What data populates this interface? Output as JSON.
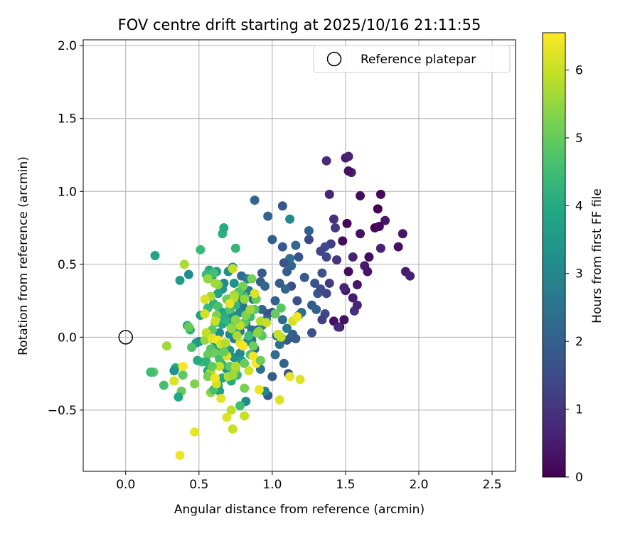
{
  "chart_data": {
    "type": "scatter",
    "title": "FOV centre drift starting at 2025/10/16 21:11:55",
    "xlabel": "Angular distance from reference (arcmin)",
    "ylabel": "Rotation from reference (arcmin)",
    "xlim": [
      -0.29,
      2.66
    ],
    "ylim": [
      -0.92,
      2.04
    ],
    "xticks": [
      0.0,
      0.5,
      1.0,
      1.5,
      2.0,
      2.5
    ],
    "xtick_labels": [
      "0.0",
      "0.5",
      "1.0",
      "1.5",
      "2.0",
      "2.5"
    ],
    "yticks": [
      -0.5,
      0.0,
      0.5,
      1.0,
      1.5,
      2.0
    ],
    "ytick_labels": [
      "−0.5",
      "0.0",
      "0.5",
      "1.0",
      "1.5",
      "2.0"
    ],
    "grid": true,
    "legend": {
      "position": "top-right",
      "entries": [
        "Reference platepar"
      ]
    },
    "reference_point": {
      "x": 0.0,
      "y": 0.0,
      "label": "Reference platepar"
    },
    "colorbar": {
      "label": "Hours from first FF file",
      "colormap": "viridis",
      "range": [
        0,
        6.55
      ],
      "ticks": [
        0,
        1,
        2,
        3,
        4,
        5,
        6
      ],
      "tick_labels": [
        "0",
        "1",
        "2",
        "3",
        "4",
        "5",
        "6"
      ]
    },
    "points_xyc": [
      [
        1.46,
        0.07,
        0.1
      ],
      [
        1.49,
        0.12,
        0.3
      ],
      [
        1.52,
        0.45,
        0.2
      ],
      [
        1.55,
        0.55,
        0.6
      ],
      [
        1.58,
        0.36,
        0.4
      ],
      [
        1.6,
        0.71,
        0.3
      ],
      [
        1.48,
        0.66,
        0.2
      ],
      [
        1.51,
        0.78,
        0.1
      ],
      [
        1.63,
        0.49,
        0.5
      ],
      [
        1.66,
        0.55,
        0.2
      ],
      [
        1.7,
        0.75,
        0.1
      ],
      [
        1.72,
        0.88,
        0.0
      ],
      [
        1.74,
        0.61,
        0.6
      ],
      [
        1.77,
        0.8,
        0.4
      ],
      [
        1.74,
        0.98,
        0.1
      ],
      [
        1.6,
        0.97,
        0.2
      ],
      [
        1.54,
        1.13,
        0.6
      ],
      [
        1.5,
        1.23,
        0.5
      ],
      [
        1.52,
        1.24,
        0.6
      ],
      [
        1.52,
        1.14,
        0.3
      ],
      [
        1.37,
        1.21,
        0.8
      ],
      [
        1.39,
        0.98,
        0.7
      ],
      [
        1.86,
        0.62,
        0.3
      ],
      [
        1.89,
        0.71,
        0.4
      ],
      [
        1.91,
        0.45,
        0.5
      ],
      [
        1.94,
        0.42,
        0.6
      ],
      [
        1.73,
        0.76,
        0.2
      ],
      [
        1.65,
        0.45,
        0.4
      ],
      [
        1.56,
        0.18,
        0.9
      ],
      [
        1.58,
        0.22,
        0.7
      ],
      [
        1.55,
        0.27,
        0.5
      ],
      [
        1.5,
        0.32,
        0.4
      ],
      [
        1.42,
        0.11,
        0.3
      ],
      [
        1.45,
        0.07,
        0.8
      ],
      [
        1.49,
        0.34,
        0.7
      ],
      [
        1.42,
        0.81,
        0.9
      ],
      [
        1.43,
        0.75,
        1.1
      ],
      [
        1.44,
        0.53,
        1.0
      ],
      [
        1.4,
        0.64,
        1.2
      ],
      [
        1.36,
        0.62,
        1.5
      ],
      [
        1.33,
        0.59,
        1.3
      ],
      [
        1.37,
        0.55,
        1.4
      ],
      [
        1.29,
        0.37,
        1.7
      ],
      [
        1.31,
        0.3,
        1.8
      ],
      [
        1.33,
        0.33,
        1.5
      ],
      [
        1.37,
        0.3,
        1.3
      ],
      [
        1.39,
        0.37,
        1.1
      ],
      [
        1.34,
        0.44,
        1.6
      ],
      [
        1.27,
        0.22,
        1.9
      ],
      [
        1.3,
        0.19,
        2.0
      ],
      [
        1.36,
        0.16,
        1.4
      ],
      [
        1.34,
        0.12,
        1.2
      ],
      [
        1.27,
        0.03,
        1.6
      ],
      [
        1.25,
        0.73,
        2.0
      ],
      [
        1.25,
        0.67,
        1.4
      ],
      [
        1.16,
        0.63,
        2.2
      ],
      [
        1.18,
        0.55,
        1.7
      ],
      [
        1.12,
        0.54,
        2.4
      ],
      [
        1.1,
        0.45,
        1.9
      ],
      [
        1.13,
        0.49,
        2.1
      ],
      [
        1.08,
        0.51,
        1.7
      ],
      [
        1.07,
        0.62,
        1.8
      ],
      [
        1.0,
        0.67,
        2.0
      ],
      [
        0.97,
        0.83,
        2.1
      ],
      [
        1.07,
        0.9,
        1.8
      ],
      [
        1.12,
        0.81,
        3.1
      ],
      [
        0.88,
        0.94,
        2.1
      ],
      [
        1.22,
        0.41,
        1.8
      ],
      [
        1.17,
        0.25,
        1.6
      ],
      [
        1.13,
        0.35,
        1.5
      ],
      [
        1.09,
        0.33,
        2.2
      ],
      [
        1.05,
        0.37,
        1.9
      ],
      [
        1.02,
        0.25,
        2.0
      ],
      [
        1.0,
        0.17,
        1.7
      ],
      [
        0.97,
        0.16,
        1.5
      ],
      [
        1.07,
        0.12,
        2.3
      ],
      [
        1.1,
        0.06,
        2.6
      ],
      [
        1.13,
        0.0,
        1.6
      ],
      [
        1.1,
        -0.02,
        1.8
      ],
      [
        1.14,
        0.02,
        2.0
      ],
      [
        1.16,
        -0.01,
        1.9
      ],
      [
        1.18,
        0.15,
        2.2
      ],
      [
        1.2,
        0.17,
        2.4
      ],
      [
        1.02,
        -0.12,
        2.3
      ],
      [
        1.05,
        -0.05,
        2.4
      ],
      [
        1.03,
        0.01,
        2.5
      ],
      [
        1.0,
        -0.27,
        1.9
      ],
      [
        1.08,
        -0.18,
        2.1
      ],
      [
        1.11,
        -0.25,
        1.7
      ],
      [
        0.97,
        -0.4,
        1.8
      ],
      [
        0.95,
        -0.37,
        3.0
      ],
      [
        0.92,
        -0.22,
        2.4
      ],
      [
        0.88,
        -0.08,
        2.2
      ],
      [
        0.86,
        -0.02,
        2.6
      ],
      [
        0.9,
        0.05,
        2.0
      ],
      [
        0.93,
        0.08,
        2.7
      ],
      [
        0.96,
        0.12,
        2.3
      ],
      [
        0.93,
        0.19,
        2.1
      ],
      [
        0.87,
        0.26,
        2.5
      ],
      [
        0.84,
        0.32,
        2.7
      ],
      [
        0.92,
        0.38,
        2.0
      ],
      [
        0.95,
        0.35,
        2.2
      ],
      [
        0.93,
        0.44,
        1.8
      ],
      [
        0.79,
        0.42,
        2.3
      ],
      [
        0.83,
        0.4,
        2.8
      ],
      [
        0.7,
        0.45,
        3.2
      ],
      [
        0.73,
        0.48,
        2.9
      ],
      [
        0.74,
        0.37,
        3.3
      ],
      [
        0.67,
        0.37,
        3.0
      ],
      [
        0.62,
        0.45,
        3.5
      ],
      [
        0.57,
        0.46,
        4.0
      ],
      [
        0.55,
        0.43,
        4.4
      ],
      [
        0.59,
        0.42,
        3.6
      ],
      [
        0.66,
        0.33,
        3.4
      ],
      [
        0.63,
        0.3,
        3.8
      ],
      [
        0.7,
        0.26,
        3.1
      ],
      [
        0.76,
        0.25,
        2.9
      ],
      [
        0.8,
        0.21,
        2.5
      ],
      [
        0.78,
        0.17,
        3.0
      ],
      [
        0.73,
        0.15,
        3.3
      ],
      [
        0.69,
        0.11,
        3.6
      ],
      [
        0.66,
        0.09,
        3.9
      ],
      [
        0.64,
        0.03,
        3.1
      ],
      [
        0.6,
        -0.02,
        3.4
      ],
      [
        0.62,
        -0.07,
        3.6
      ],
      [
        0.68,
        -0.05,
        3.7
      ],
      [
        0.71,
        -0.09,
        3.5
      ],
      [
        0.74,
        -0.14,
        3.3
      ],
      [
        0.78,
        -0.11,
        3.0
      ],
      [
        0.8,
        -0.06,
        2.8
      ],
      [
        0.83,
        -0.03,
        3.2
      ],
      [
        0.86,
        0.05,
        2.4
      ],
      [
        0.82,
        0.09,
        2.6
      ],
      [
        0.78,
        0.04,
        2.7
      ],
      [
        0.74,
        -0.01,
        2.5
      ],
      [
        0.71,
        0.02,
        3.0
      ],
      [
        0.69,
        -0.22,
        3.4
      ],
      [
        0.66,
        -0.28,
        3.9
      ],
      [
        0.63,
        -0.33,
        3.3
      ],
      [
        0.64,
        -0.37,
        3.7
      ],
      [
        0.72,
        -0.3,
        4.0
      ],
      [
        0.76,
        -0.26,
        4.3
      ],
      [
        0.79,
        -0.16,
        3.6
      ],
      [
        0.82,
        -0.44,
        3.1
      ],
      [
        0.78,
        -0.47,
        4.5
      ],
      [
        0.52,
        -0.17,
        4.6
      ],
      [
        0.56,
        -0.23,
        4.0
      ],
      [
        0.5,
        -0.03,
        3.0
      ],
      [
        0.48,
        -0.04,
        3.5
      ],
      [
        0.44,
        0.05,
        4.2
      ],
      [
        0.42,
        0.08,
        4.1
      ],
      [
        0.51,
        0.15,
        3.8
      ],
      [
        0.54,
        0.16,
        4.8
      ],
      [
        0.56,
        0.2,
        4.4
      ],
      [
        0.6,
        0.23,
        4.2
      ],
      [
        0.63,
        0.21,
        4.7
      ],
      [
        0.66,
        0.17,
        3.9
      ],
      [
        0.68,
        0.12,
        4.3
      ],
      [
        0.72,
        0.07,
        4.6
      ],
      [
        0.75,
        0.03,
        4.0
      ],
      [
        0.81,
        0.1,
        4.9
      ],
      [
        0.85,
        0.14,
        4.4
      ],
      [
        0.88,
        0.19,
        4.8
      ],
      [
        0.81,
        0.28,
        4.5
      ],
      [
        0.78,
        0.3,
        4.1
      ],
      [
        0.75,
        0.22,
        4.3
      ],
      [
        0.71,
        0.19,
        4.7
      ],
      [
        0.67,
        0.14,
        4.1
      ],
      [
        0.61,
        0.1,
        4.5
      ],
      [
        0.59,
        0.05,
        4.9
      ],
      [
        0.57,
        0.01,
        5.2
      ],
      [
        0.54,
        -0.02,
        5.5
      ],
      [
        0.58,
        -0.08,
        4.8
      ],
      [
        0.61,
        -0.11,
        5.1
      ],
      [
        0.64,
        -0.15,
        4.6
      ],
      [
        0.66,
        -0.19,
        4.3
      ],
      [
        0.71,
        -0.2,
        4.9
      ],
      [
        0.75,
        -0.22,
        5.3
      ],
      [
        0.81,
        -0.18,
        5.0
      ],
      [
        0.85,
        -0.12,
        4.7
      ],
      [
        0.87,
        -0.06,
        5.1
      ],
      [
        0.84,
        0.01,
        4.5
      ],
      [
        0.91,
        0.04,
        5.3
      ],
      [
        0.93,
        0.01,
        4.8
      ],
      [
        0.89,
        0.26,
        5.0
      ],
      [
        0.8,
        0.35,
        5.2
      ],
      [
        0.77,
        0.31,
        4.8
      ],
      [
        0.74,
        0.29,
        5.6
      ],
      [
        0.69,
        0.26,
        5.1
      ],
      [
        0.63,
        0.36,
        5.4
      ],
      [
        0.66,
        0.71,
        4.2
      ],
      [
        0.67,
        0.75,
        4.0
      ],
      [
        0.75,
        0.61,
        4.3
      ],
      [
        0.51,
        0.6,
        4.4
      ],
      [
        0.4,
        0.5,
        5.7
      ],
      [
        0.43,
        0.43,
        3.2
      ],
      [
        0.37,
        0.39,
        3.6
      ],
      [
        0.2,
        0.56,
        3.8
      ],
      [
        0.6,
        0.44,
        4.6
      ],
      [
        0.56,
        0.4,
        5.5
      ],
      [
        0.62,
        0.15,
        5.3
      ],
      [
        0.56,
        -0.12,
        5.0
      ],
      [
        0.55,
        -0.17,
        4.2
      ],
      [
        0.49,
        -0.16,
        4.0
      ],
      [
        0.34,
        -0.21,
        4.1
      ],
      [
        0.33,
        -0.23,
        3.3
      ],
      [
        0.39,
        -0.26,
        4.9
      ],
      [
        0.38,
        -0.37,
        5.0
      ],
      [
        0.26,
        -0.33,
        4.6
      ],
      [
        0.28,
        -0.06,
        5.6
      ],
      [
        0.19,
        -0.24,
        4.9
      ],
      [
        0.17,
        -0.24,
        4.5
      ],
      [
        0.36,
        -0.41,
        3.9
      ],
      [
        0.47,
        -0.32,
        5.3
      ],
      [
        0.58,
        -0.38,
        5.4
      ],
      [
        0.6,
        -0.36,
        4.6
      ],
      [
        0.7,
        -0.27,
        5.8
      ],
      [
        0.73,
        -0.26,
        5.6
      ],
      [
        0.72,
        -0.5,
        5.9
      ],
      [
        0.81,
        -0.35,
        5.2
      ],
      [
        0.81,
        -0.54,
        6.0
      ],
      [
        0.69,
        -0.55,
        6.2
      ],
      [
        0.73,
        -0.63,
        6.0
      ],
      [
        0.47,
        -0.65,
        6.3
      ],
      [
        0.37,
        -0.81,
        6.4
      ],
      [
        0.33,
        -0.3,
        6.2
      ],
      [
        0.39,
        -0.2,
        6.5
      ],
      [
        0.65,
        -0.42,
        6.3
      ],
      [
        0.91,
        -0.36,
        6.4
      ],
      [
        1.05,
        -0.43,
        6.2
      ],
      [
        1.12,
        -0.27,
        6.3
      ],
      [
        1.19,
        -0.29,
        6.2
      ],
      [
        1.14,
        0.11,
        6.1
      ],
      [
        1.17,
        0.14,
        6.4
      ],
      [
        1.06,
        0.0,
        5.9
      ],
      [
        1.04,
        0.02,
        6.0
      ],
      [
        0.87,
        -0.13,
        6.4
      ],
      [
        0.89,
        -0.18,
        6.5
      ],
      [
        0.84,
        -0.23,
        6.1
      ],
      [
        0.74,
        0.27,
        5.8
      ],
      [
        0.71,
        0.23,
        6.3
      ],
      [
        0.88,
        0.3,
        6.2
      ],
      [
        0.92,
        0.11,
        5.8
      ],
      [
        0.81,
        0.26,
        5.5
      ],
      [
        0.73,
        0.47,
        6.0
      ],
      [
        0.86,
        0.4,
        5.2
      ],
      [
        0.61,
        0.37,
        5.6
      ],
      [
        0.58,
        0.28,
        5.7
      ],
      [
        0.54,
        0.26,
        6.2
      ],
      [
        0.54,
        0.16,
        6.1
      ],
      [
        0.61,
        0.11,
        6.0
      ],
      [
        0.55,
        0.03,
        5.9
      ],
      [
        0.59,
        -0.01,
        6.3
      ],
      [
        0.63,
        -0.02,
        6.5
      ],
      [
        0.65,
        -0.05,
        6.1
      ],
      [
        0.68,
        -0.04,
        5.8
      ],
      [
        0.69,
        -0.13,
        6.2
      ],
      [
        0.64,
        -0.2,
        6.0
      ],
      [
        0.58,
        -0.24,
        5.7
      ],
      [
        0.56,
        -0.27,
        5.2
      ],
      [
        0.62,
        -0.32,
        6.1
      ],
      [
        0.61,
        -0.28,
        6.4
      ],
      [
        0.78,
        -0.04,
        6.2
      ],
      [
        0.8,
        -0.06,
        6.5
      ],
      [
        0.76,
        0.01,
        5.7
      ],
      [
        0.72,
        0.06,
        5.5
      ],
      [
        0.78,
        0.08,
        5.9
      ],
      [
        0.75,
        0.12,
        5.4
      ],
      [
        0.82,
        0.15,
        5.3
      ],
      [
        0.85,
        0.19,
        5.6
      ],
      [
        0.9,
        0.03,
        5.4
      ],
      [
        0.96,
        0.1,
        6.0
      ],
      [
        1.02,
        0.16,
        5.0
      ],
      [
        1.06,
        0.2,
        4.8
      ],
      [
        0.92,
        -0.16,
        5.1
      ],
      [
        0.75,
        -0.2,
        5.8
      ],
      [
        0.67,
        -0.1,
        5.0
      ],
      [
        0.59,
        -0.2,
        4.9
      ],
      [
        0.45,
        -0.07,
        4.7
      ],
      [
        0.43,
        0.07,
        5.0
      ]
    ]
  }
}
